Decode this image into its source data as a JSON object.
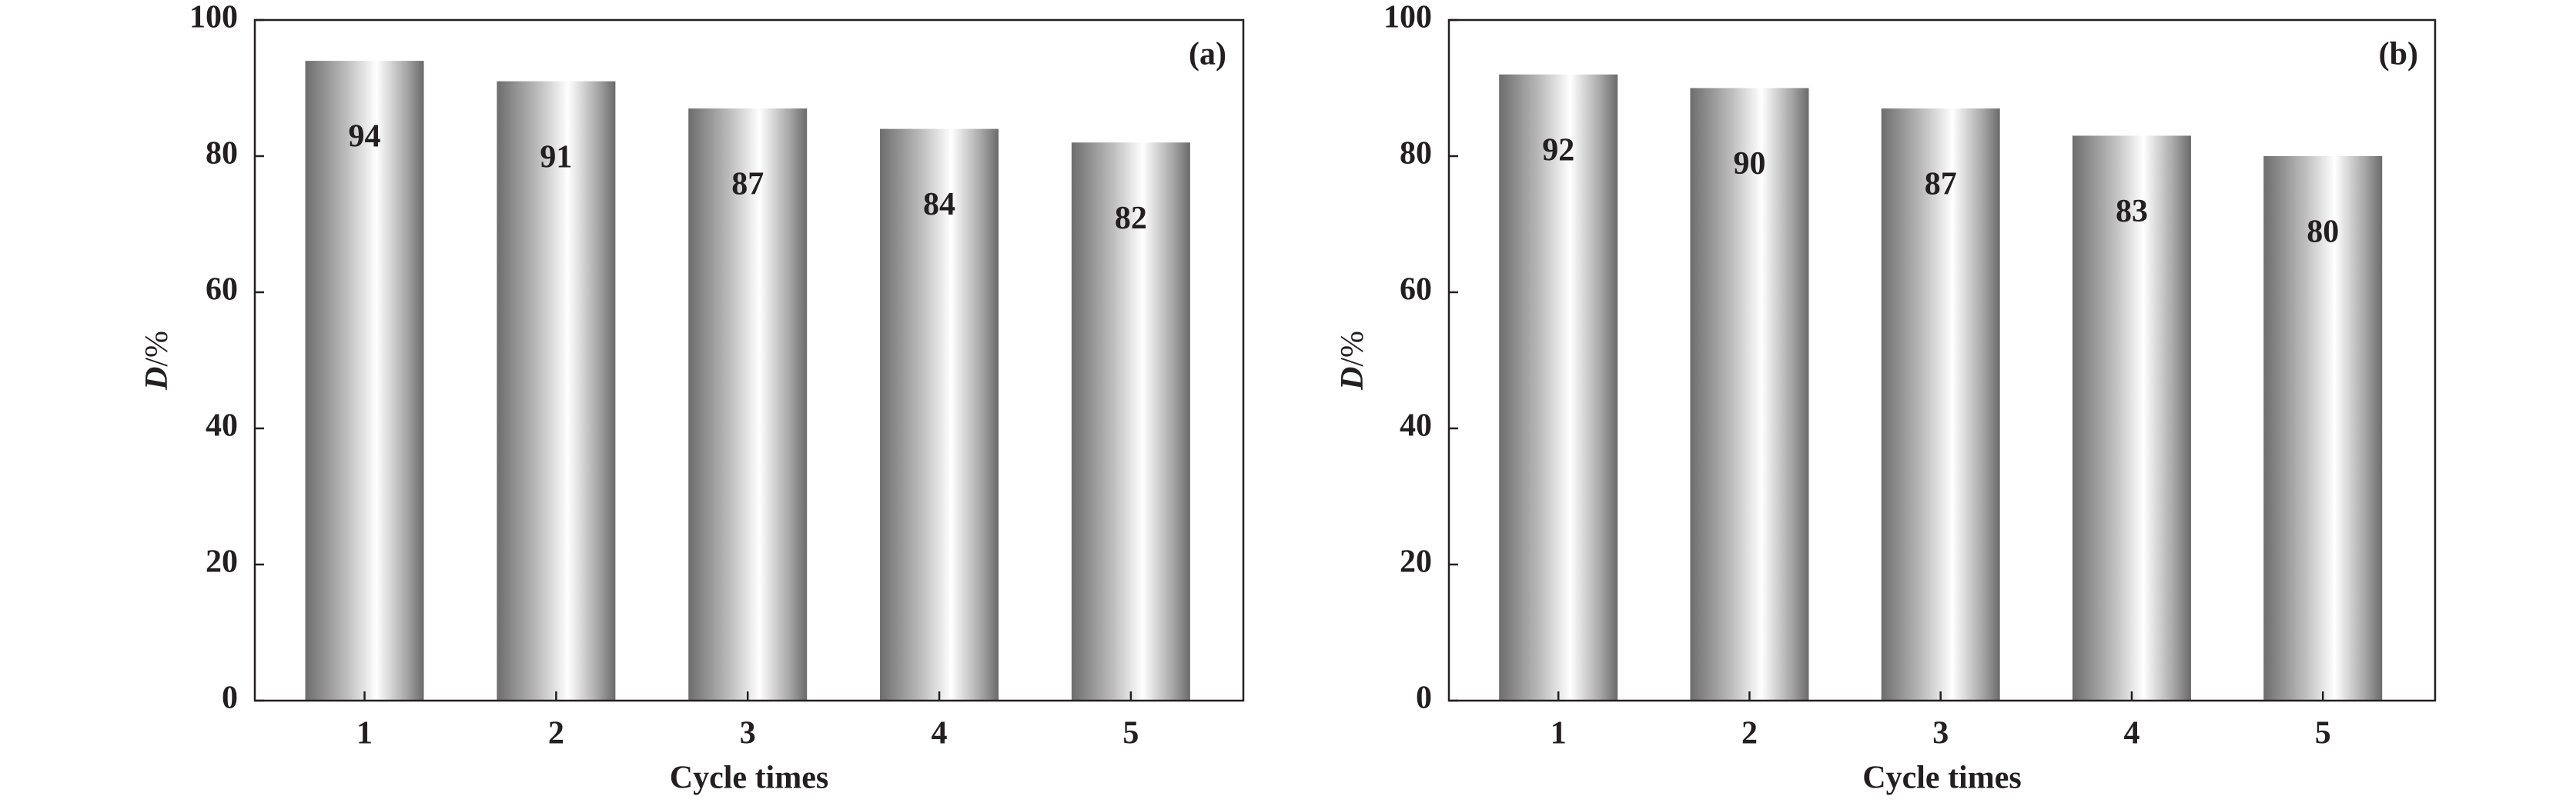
{
  "chart_data": [
    {
      "type": "bar",
      "panel_label": "(a)",
      "x_label": "Cycle times",
      "y_label": "D/%",
      "categories": [
        "1",
        "2",
        "3",
        "4",
        "5"
      ],
      "values": [
        94,
        91,
        87,
        84,
        82
      ],
      "ylim": [
        0,
        100
      ],
      "yticks": [
        0,
        20,
        40,
        60,
        80,
        100
      ]
    },
    {
      "type": "bar",
      "panel_label": "(b)",
      "x_label": "Cycle times",
      "y_label": "D/%",
      "categories": [
        "1",
        "2",
        "3",
        "4",
        "5"
      ],
      "values": [
        92,
        90,
        87,
        83,
        80
      ],
      "ylim": [
        0,
        100
      ],
      "yticks": [
        0,
        20,
        40,
        60,
        80,
        100
      ]
    }
  ]
}
